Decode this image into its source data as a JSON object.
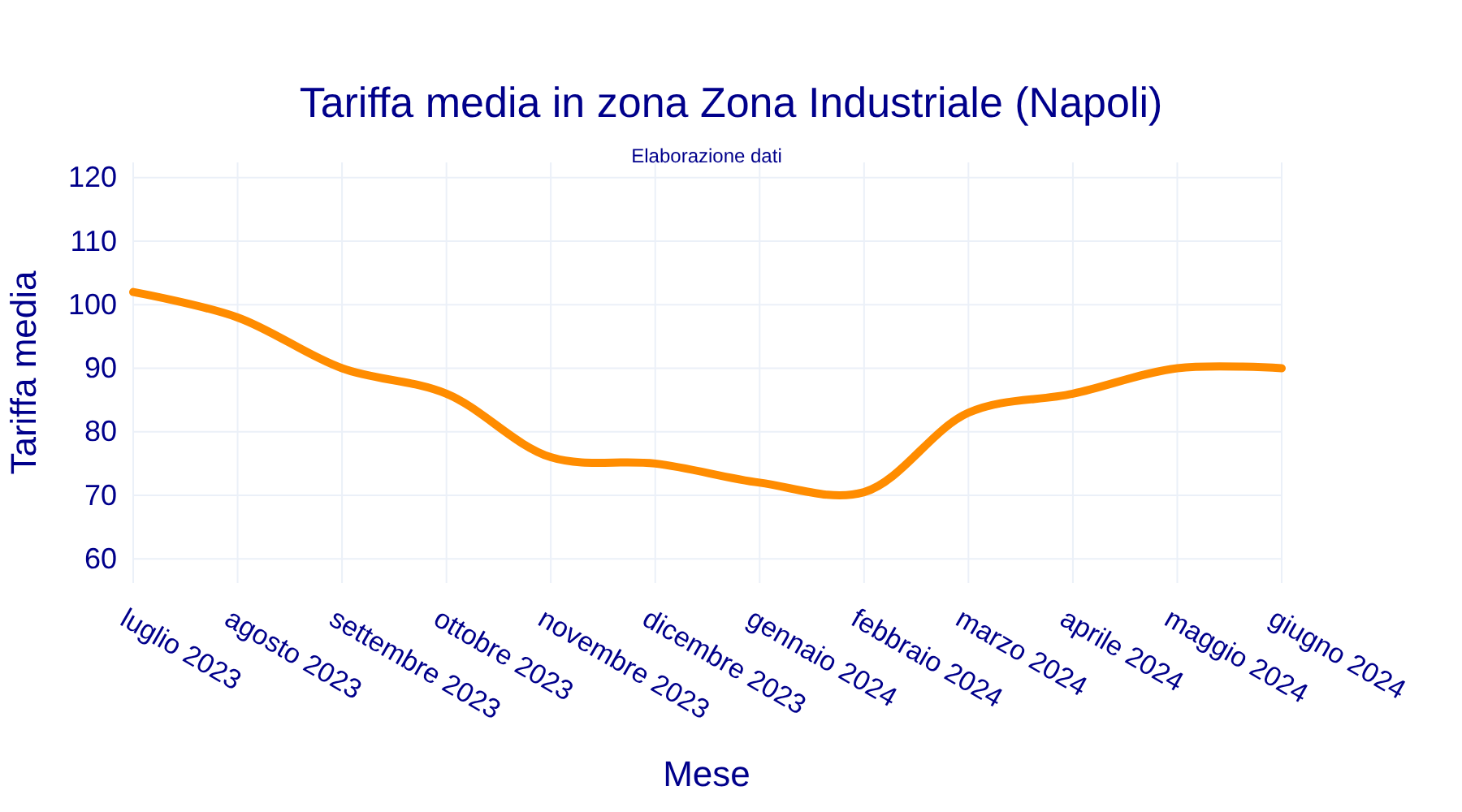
{
  "chart_data": {
    "type": "line",
    "title": "Tariffa media in zona Zona Industriale (Napoli)",
    "subtitle": "Elaborazione dati",
    "xlabel": "Mese",
    "ylabel": "Tariffa media",
    "categories": [
      "luglio 2023",
      "agosto 2023",
      "settembre 2023",
      "ottobre 2023",
      "novembre 2023",
      "dicembre 2023",
      "gennaio 2024",
      "febbraio 2024",
      "marzo 2024",
      "aprile 2024",
      "maggio 2024",
      "giugno 2024"
    ],
    "series": [
      {
        "color": "#ff8c00",
        "values": [
          102,
          98,
          90,
          86,
          76,
          75,
          72,
          70.5,
          83,
          86,
          90,
          90
        ]
      }
    ],
    "ylim": [
      56.2,
      122.4
    ],
    "yticks": [
      60,
      70,
      80,
      90,
      100,
      110,
      120
    ],
    "grid": true
  }
}
